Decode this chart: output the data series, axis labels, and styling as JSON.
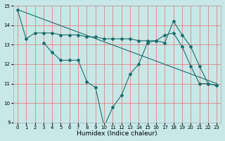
{
  "title": "",
  "xlabel": "Humidex (Indice chaleur)",
  "bg_color": "#c8e8e8",
  "grid_color": "#e08080",
  "line_color": "#1a6e6a",
  "xlim": [
    -0.5,
    23.5
  ],
  "ylim": [
    9,
    15
  ],
  "xticks": [
    0,
    1,
    2,
    3,
    4,
    5,
    6,
    7,
    8,
    9,
    10,
    11,
    12,
    13,
    14,
    15,
    16,
    17,
    18,
    19,
    20,
    21,
    22,
    23
  ],
  "yticks": [
    9,
    10,
    11,
    12,
    13,
    14,
    15
  ],
  "line1_x": [
    0,
    1,
    2,
    3,
    4,
    5,
    6,
    7,
    8,
    9,
    10,
    11,
    12,
    13,
    14,
    15,
    16,
    17,
    18,
    19,
    20,
    21,
    22,
    23
  ],
  "line1_y": [
    14.8,
    13.3,
    13.6,
    13.6,
    13.6,
    13.5,
    13.5,
    13.5,
    13.4,
    13.4,
    13.3,
    13.3,
    13.3,
    13.3,
    13.2,
    13.2,
    13.2,
    13.5,
    13.6,
    12.9,
    11.9,
    11.0,
    11.0,
    10.9
  ],
  "line2_x": [
    3,
    4,
    5,
    6,
    7,
    8,
    9,
    10,
    11,
    12,
    13,
    14,
    15,
    16,
    17,
    18,
    19,
    20,
    21,
    22,
    23
  ],
  "line2_y": [
    13.1,
    12.6,
    12.2,
    12.2,
    12.2,
    11.1,
    10.8,
    8.8,
    9.8,
    10.4,
    11.5,
    12.0,
    13.1,
    13.2,
    13.1,
    14.2,
    13.5,
    12.9,
    11.9,
    11.0,
    10.9
  ],
  "line3_x": [
    0,
    23
  ],
  "line3_y": [
    14.8,
    11.0
  ],
  "tick_fontsize": 5.0,
  "xlabel_fontsize": 6.5
}
